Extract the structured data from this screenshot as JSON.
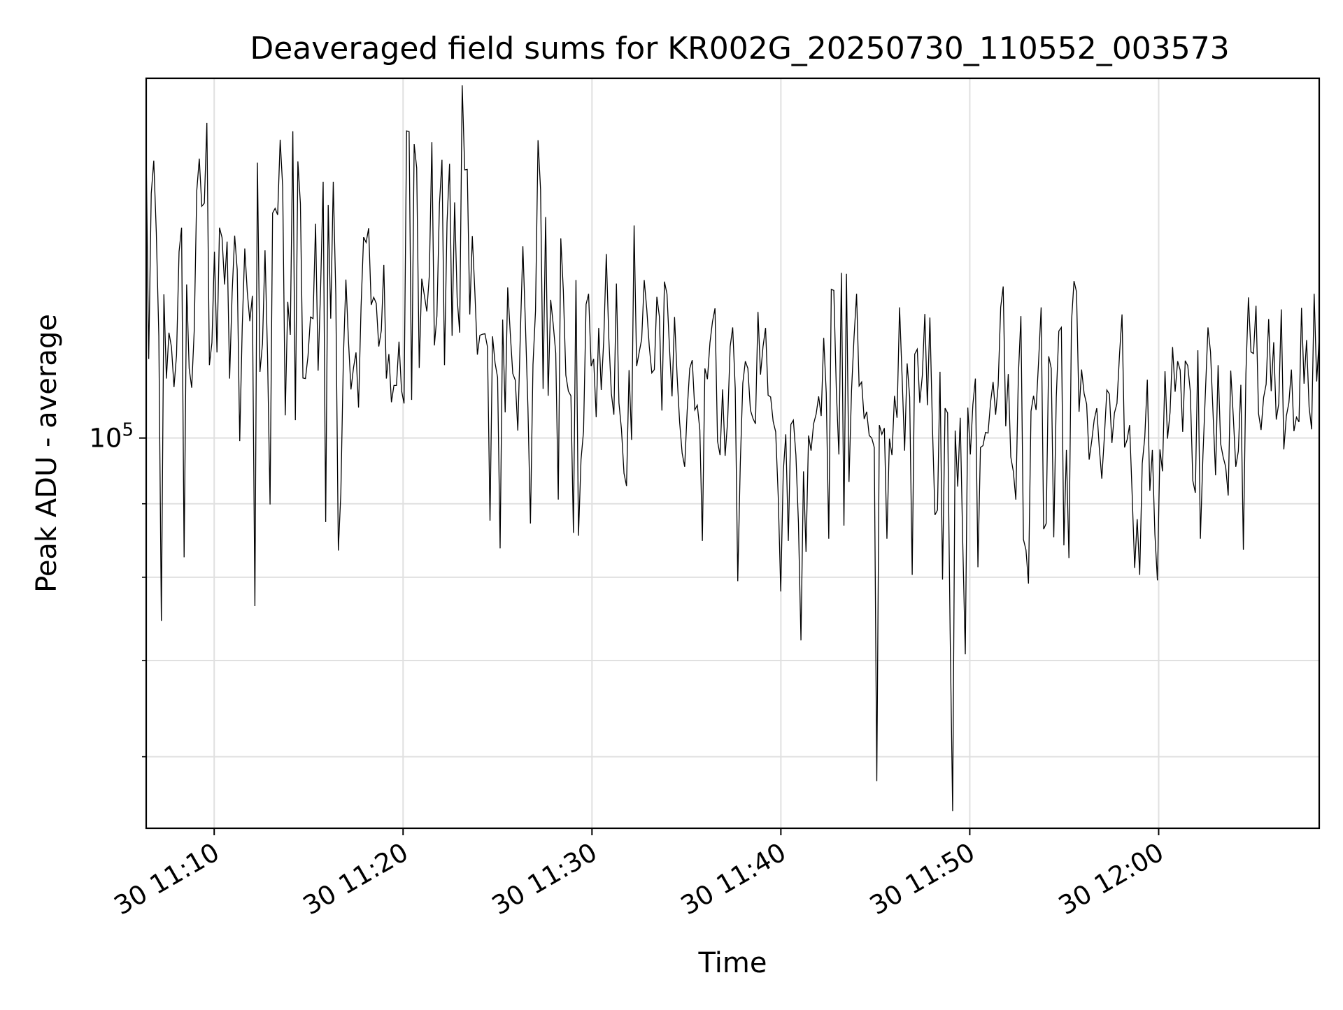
{
  "chart_data": {
    "type": "line",
    "title": "Deaveraged field sums for KR002G_20250730_110552_003573",
    "xlabel": "Time",
    "ylabel": "Peak ADU - average",
    "x_range": [
      "2025-07-30 11:06:24",
      "2025-07-30 12:08:30"
    ],
    "xticks": [
      {
        "time": "2025-07-30 11:10:00",
        "label": "30 11:10"
      },
      {
        "time": "2025-07-30 11:20:00",
        "label": "30 11:20"
      },
      {
        "time": "2025-07-30 11:30:00",
        "label": "30 11:30"
      },
      {
        "time": "2025-07-30 11:40:00",
        "label": "30 11:40"
      },
      {
        "time": "2025-07-30 11:50:00",
        "label": "30 11:50"
      },
      {
        "time": "2025-07-30 12:00:00",
        "label": "30 12:00"
      }
    ],
    "y_scale": "log",
    "ylim": [
      53500,
      178000
    ],
    "yticks": [
      {
        "value": 100000,
        "base": "10",
        "exp": "5"
      }
    ],
    "y_minor_ticks": [
      60000,
      70000,
      80000,
      90000,
      200000
    ],
    "grid": true,
    "line_color": "#000000",
    "series": [
      {
        "x_start": "2025-07-30 11:06:24",
        "x_end": "2025-07-30 12:08:30",
        "values": [
          158000,
          113500,
          148000,
          156000,
          139000,
          117800,
          74600,
          125900,
          110000,
          118400,
          115700,
          108500,
          114200,
          134800,
          140100,
          82600,
          127900,
          111800,
          108400,
          118800,
          148600,
          156500,
          145000,
          145700,
          165700,
          112400,
          116500,
          134800,
          114700,
          140100,
          137900,
          127900,
          137000,
          110000,
          126200,
          138300,
          131000,
          99500,
          119600,
          135500,
          126300,
          120600,
          125600,
          76400,
          155500,
          111200,
          116300,
          135100,
          114200,
          89900,
          143400,
          144500,
          143000,
          161300,
          149400,
          103700,
          124400,
          118000,
          163500,
          102900,
          155800,
          145600,
          110100,
          110000,
          114000,
          121400,
          121100,
          141000,
          111400,
          127300,
          150800,
          87400,
          145300,
          121100,
          150800,
          125900,
          83500,
          91600,
          113700,
          128900,
          117000,
          108100,
          111900,
          114700,
          105000,
          123500,
          138000,
          136800,
          140000,
          123800,
          125300,
          124100,
          115800,
          118800,
          132000,
          110000,
          114400,
          105900,
          108800,
          108800,
          116700,
          107900,
          105700,
          163600,
          163400,
          106300,
          160200,
          154200,
          111900,
          129100,
          125800,
          122500,
          129800,
          160700,
          116000,
          121600,
          145500,
          156200,
          112400,
          141300,
          155200,
          117800,
          145900,
          125200,
          118400,
          176000,
          153700,
          153800,
          121900,
          138200,
          126500,
          114300,
          117900,
          118100,
          118200,
          115700,
          87600,
          117700,
          112800,
          110200,
          83800,
          120900,
          104200,
          127300,
          118400,
          110900,
          109700,
          101200,
          118200,
          136000,
          120200,
          105000,
          87200,
          112500,
          122600,
          161200,
          148900,
          108200,
          142500,
          107000,
          124800,
          120000,
          114600,
          90600,
          137700,
          126700,
          110600,
          107800,
          107000,
          85900,
          128800,
          85500,
          96600,
          101100,
          123900,
          126000,
          112200,
          113500,
          103400,
          119300,
          108000,
          117100,
          134300,
          117300,
          107400,
          103800,
          128100,
          105800,
          101400,
          94500,
          92600,
          111500,
          99700,
          140600,
          112200,
          114700,
          117200,
          128800,
          123000,
          115800,
          111000,
          111600,
          125400,
          121500,
          104500,
          128500,
          126000,
          115500,
          106900,
          121400,
          110500,
          102600,
          97600,
          95500,
          104500,
          111800,
          113300,
          104600,
          105400,
          101300,
          84800,
          111800,
          109900,
          116500,
          120500,
          123100,
          99500,
          97300,
          108100,
          97200,
          102800,
          115800,
          119400,
          108300,
          79500,
          95900,
          109200,
          113100,
          111800,
          104600,
          103200,
          102300,
          122400,
          110700,
          115800,
          119300,
          107100,
          106800,
          102700,
          101000,
          91100,
          78200,
          94700,
          100600,
          84800,
          102200,
          102900,
          97300,
          87300,
          72300,
          94800,
          83300,
          100400,
          98000,
          102300,
          103900,
          106900,
          103600,
          117400,
          107500,
          85100,
          126900,
          126700,
          107900,
          97400,
          130300,
          86900,
          130100,
          93200,
          107900,
          117600,
          126000,
          108700,
          109400,
          103100,
          104300,
          100400,
          100000,
          98500,
          57700,
          102100,
          100600,
          101600,
          85100,
          99900,
          97300,
          107000,
          103300,
          123300,
          110400,
          98000,
          112700,
          106800,
          80300,
          114400,
          115300,
          105800,
          110500,
          122000,
          105400,
          121300,
          102000,
          88400,
          89100,
          111200,
          79700,
          104900,
          104100,
          73400,
          55000,
          101200,
          92500,
          103300,
          84500,
          70700,
          105000,
          97400,
          105500,
          110000,
          81300,
          98500,
          98800,
          100900,
          100800,
          105900,
          109400,
          103800,
          108800,
          123300,
          127500,
          101900,
          110800,
          97000,
          94800,
          90600,
          110600,
          121600,
          85000,
          83600,
          79200,
          104400,
          107000,
          104600,
          113100,
          123300,
          86400,
          87200,
          114000,
          111800,
          85300,
          106800,
          118700,
          119400,
          84200,
          98100,
          82500,
          120400,
          128600,
          126400,
          104300,
          111600,
          107400,
          105600,
          96600,
          99500,
          103000,
          104900,
          98500,
          93700,
          100100,
          108000,
          107300,
          99200,
          104100,
          105700,
          114300,
          121900,
          98500,
          99700,
          102100,
          91400,
          81200,
          87800,
          80300,
          96000,
          100100,
          109800,
          91900,
          98100,
          85700,
          79600,
          98200,
          94800,
          111300,
          99900,
          104200,
          115700,
          107700,
          113100,
          111500,
          101000,
          113200,
          112300,
          107800,
          93400,
          91600,
          115100,
          85100,
          97200,
          107800,
          119400,
          114800,
          104100,
          94200,
          112400,
          99100,
          97000,
          95500,
          91200,
          111400,
          103600,
          95500,
          97900,
          108900,
          83600,
          110900,
          125300,
          114800,
          114500,
          123600,
          104000,
          101300,
          106700,
          109000,
          121000,
          107800,
          116600,
          103000,
          105700,
          122900,
          98200,
          103600,
          105800,
          111600,
          101100,
          103400,
          102600,
          123200,
          109100,
          117000,
          105100,
          101400,
          126000,
          109500,
          117500
        ]
      }
    ]
  }
}
